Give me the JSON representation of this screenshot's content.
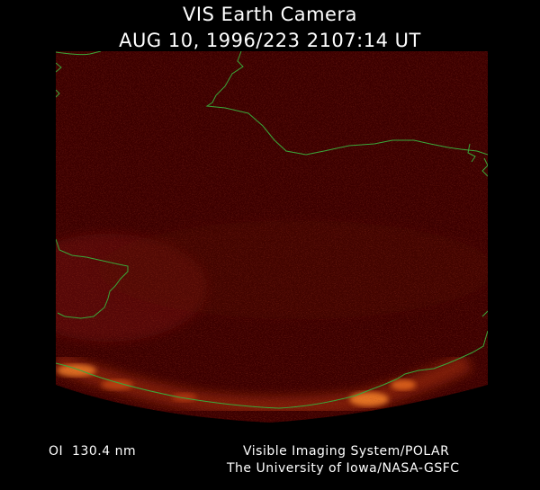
{
  "header": {
    "title": "VIS Earth Camera",
    "timestamp": "AUG 10, 1996/223 2107:14 UT"
  },
  "footer": {
    "filter": "OI  130.4 nm",
    "credit_line_1": "Visible Imaging System/POLAR",
    "credit_line_2": "The University of Iowa/NASA-GSFC"
  },
  "colors": {
    "background": "#000000",
    "image_base": "#3c0000",
    "aurora_glow": "#ff8a2a",
    "coastline": "#3aa83a",
    "text": "#ffffff"
  }
}
